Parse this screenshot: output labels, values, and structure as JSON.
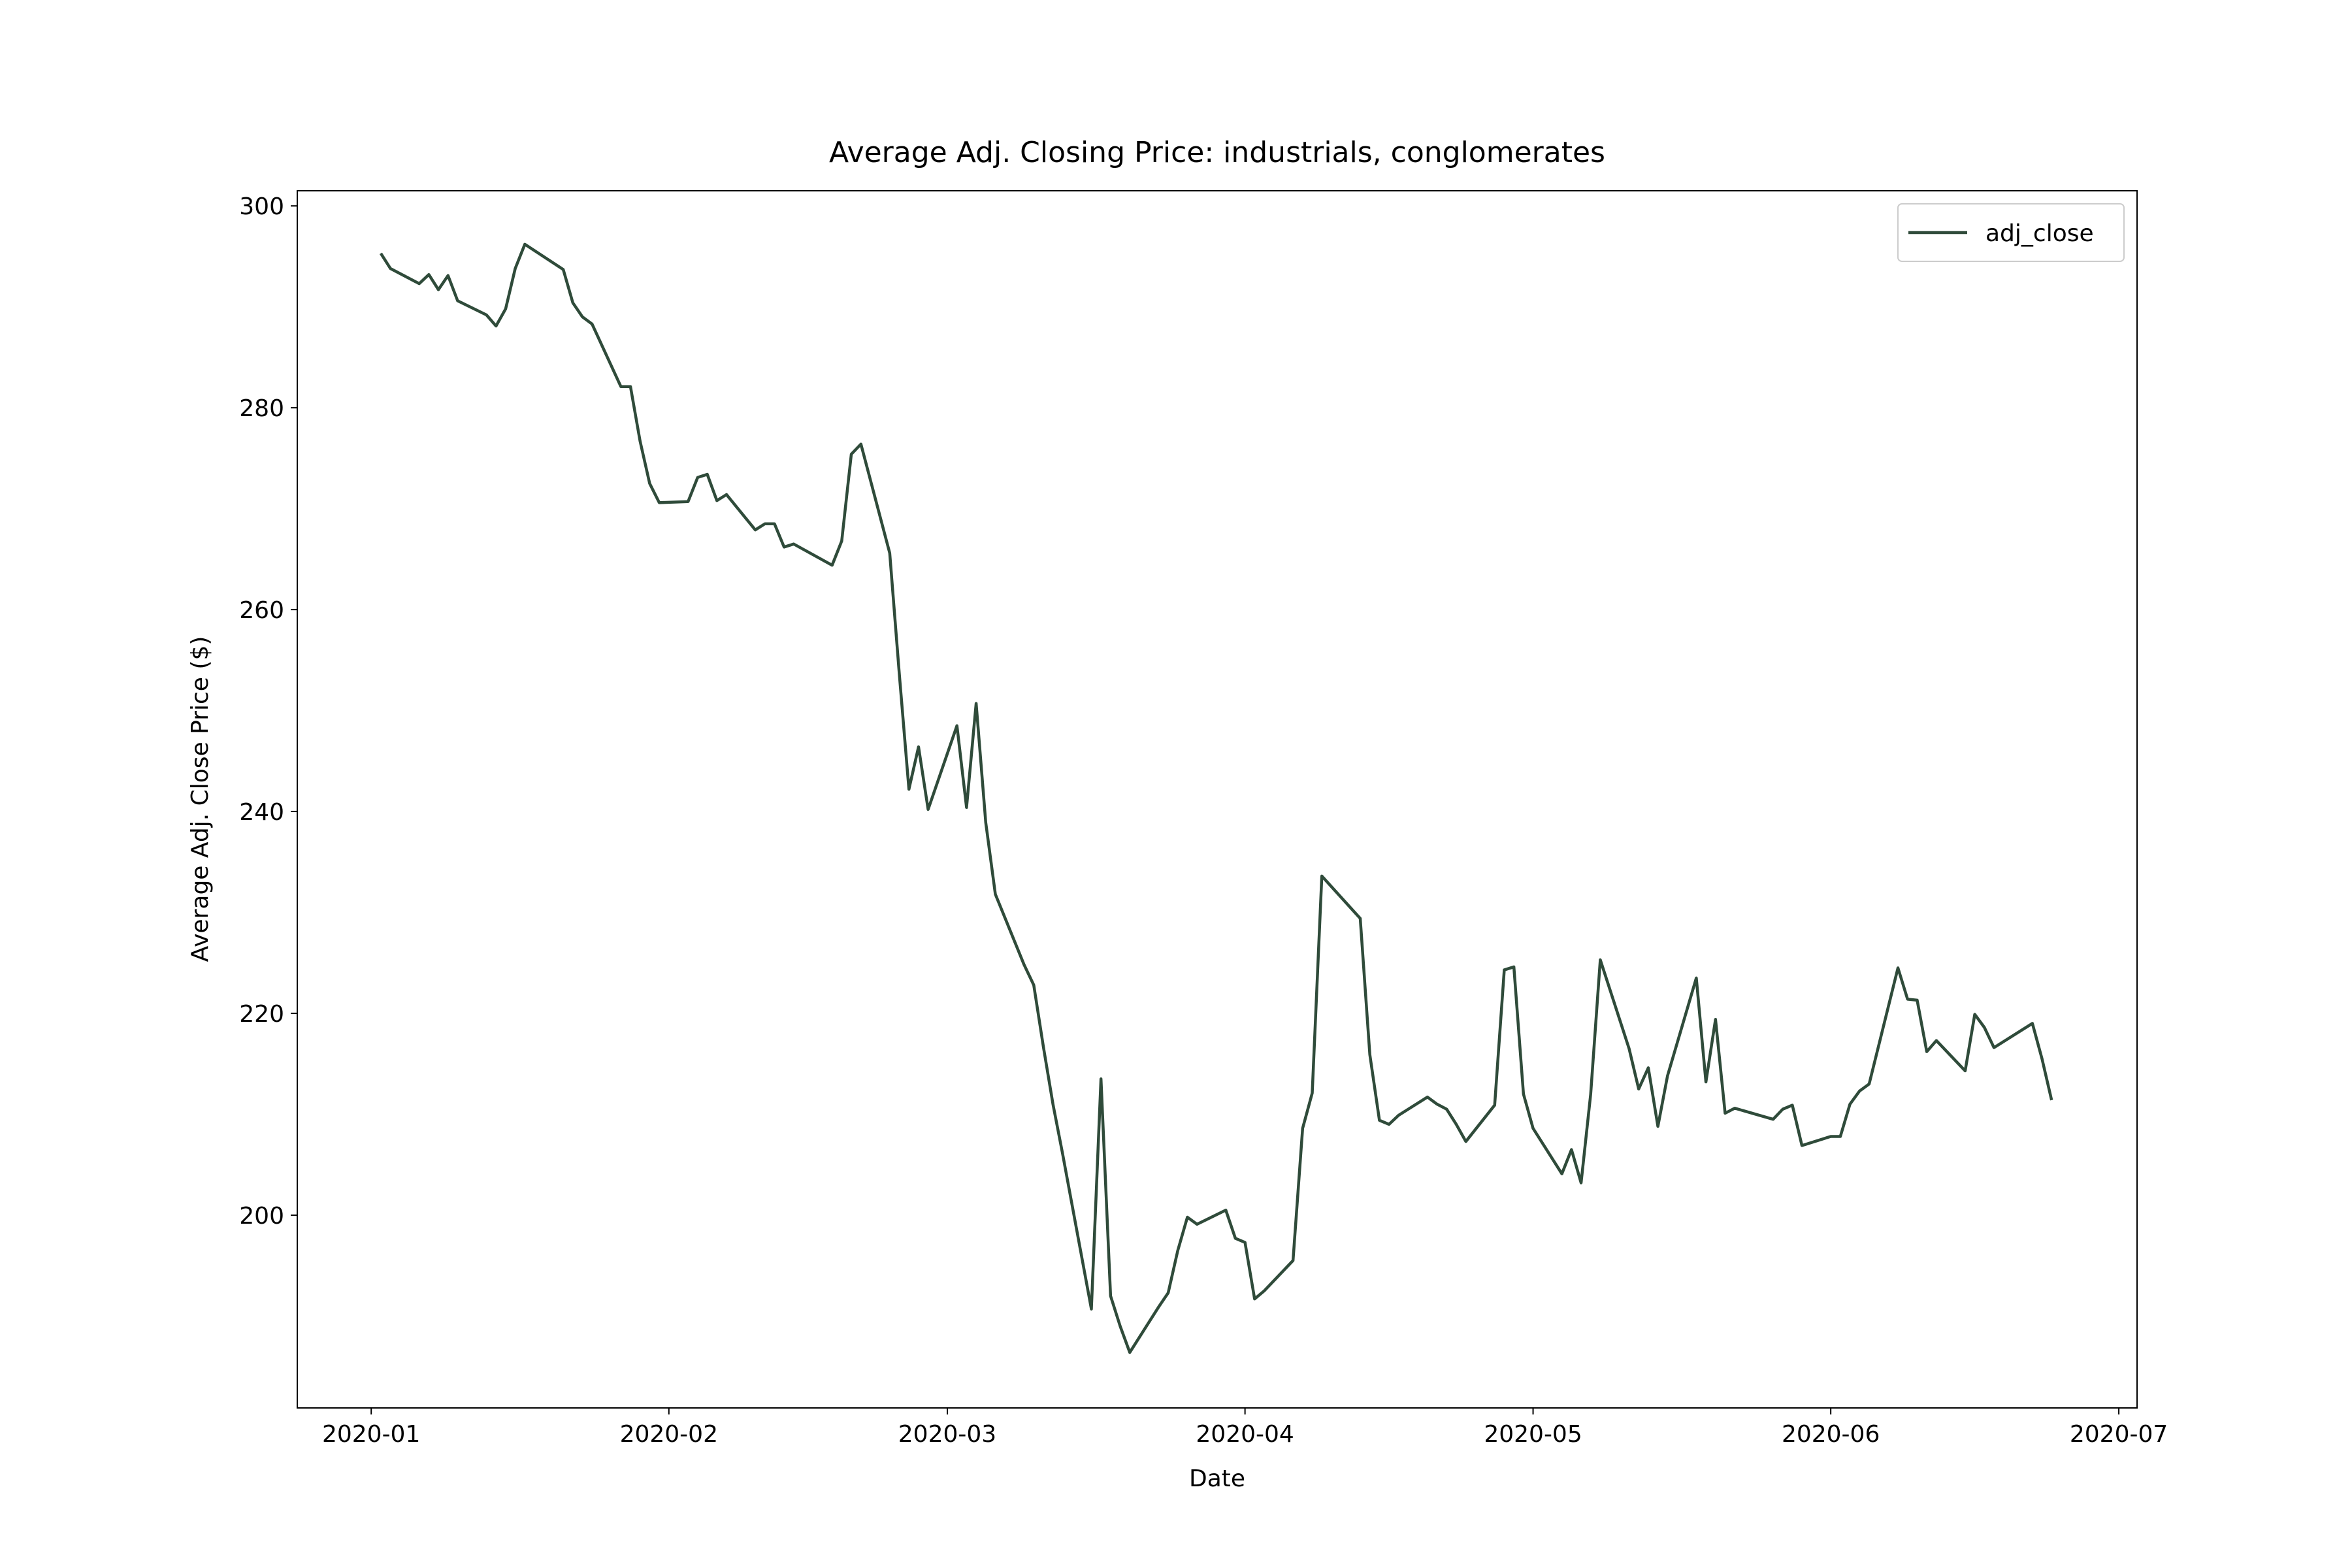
{
  "chart_data": {
    "type": "line",
    "title": "Average Adj. Closing Price: industrials, conglomerates",
    "x_label": "Date",
    "y_label": "Average Adj. Close Price ($)",
    "x": [
      18263,
      18264,
      18267,
      18268,
      18269,
      18270,
      18271,
      18274,
      18275,
      18276,
      18277,
      18278,
      18282,
      18283,
      18284,
      18285,
      18288,
      18289,
      18290,
      18291,
      18292,
      18295,
      18296,
      18297,
      18298,
      18299,
      18302,
      18303,
      18304,
      18305,
      18306,
      18310,
      18311,
      18312,
      18313,
      18316,
      18317,
      18318,
      18319,
      18320,
      18323,
      18324,
      18325,
      18326,
      18327,
      18330,
      18331,
      18332,
      18333,
      18334,
      18337,
      18338,
      18339,
      18340,
      18341,
      18344,
      18345,
      18346,
      18347,
      18348,
      18351,
      18352,
      18353,
      18354,
      18355,
      18358,
      18359,
      18360,
      18361,
      18365,
      18366,
      18367,
      18368,
      18369,
      18372,
      18373,
      18374,
      18375,
      18376,
      18379,
      18380,
      18381,
      18382,
      18383,
      18386,
      18387,
      18388,
      18389,
      18390,
      18393,
      18394,
      18395,
      18396,
      18397,
      18400,
      18401,
      18402,
      18403,
      18404,
      18408,
      18409,
      18410,
      18411,
      18414,
      18415,
      18416,
      18417,
      18418,
      18421,
      18422,
      18423,
      18424,
      18425,
      18428,
      18429,
      18430,
      18431,
      18435,
      18436,
      18437
    ],
    "series": [
      {
        "name": "adj_close",
        "color": "#2f4b3a",
        "values": [
          295.3,
          293.8,
          292.3,
          293.2,
          291.7,
          293.1,
          290.6,
          289.2,
          288.1,
          289.8,
          293.8,
          296.2,
          293.7,
          290.4,
          289.0,
          288.3,
          282.1,
          282.1,
          276.7,
          272.5,
          270.6,
          270.7,
          273.1,
          273.4,
          270.8,
          271.4,
          267.9,
          268.5,
          268.5,
          266.2,
          266.5,
          264.4,
          266.8,
          275.4,
          276.4,
          265.6,
          253.6,
          242.2,
          246.4,
          240.2,
          248.5,
          240.4,
          250.7,
          238.9,
          231.8,
          224.8,
          222.8,
          216.7,
          211.0,
          206.1,
          190.7,
          213.5,
          192.0,
          189.0,
          186.4,
          190.9,
          192.3,
          196.5,
          199.8,
          199.1,
          200.5,
          197.7,
          197.3,
          191.7,
          192.5,
          195.5,
          208.6,
          212.1,
          233.6,
          229.4,
          215.9,
          209.4,
          209.0,
          209.9,
          211.7,
          211.0,
          210.5,
          209.0,
          207.3,
          210.9,
          224.3,
          224.6,
          212.0,
          208.6,
          204.1,
          206.5,
          203.2,
          212.0,
          225.3,
          216.5,
          212.5,
          214.6,
          208.8,
          213.8,
          223.5,
          213.2,
          219.4,
          210.1,
          210.6,
          209.5,
          210.5,
          210.9,
          206.9,
          207.8,
          207.8,
          211.0,
          212.3,
          213.0,
          224.5,
          221.4,
          221.3,
          216.2,
          217.3,
          214.3,
          219.9,
          218.6,
          216.6,
          219.0,
          215.5,
          211.4
        ]
      }
    ],
    "xlim": [
      18254.3,
      18445.9
    ],
    "ylim": [
      180.9,
      301.5
    ],
    "xticks": [
      {
        "value": 18262,
        "label": "2020-01"
      },
      {
        "value": 18293,
        "label": "2020-02"
      },
      {
        "value": 18322,
        "label": "2020-03"
      },
      {
        "value": 18353,
        "label": "2020-04"
      },
      {
        "value": 18383,
        "label": "2020-05"
      },
      {
        "value": 18414,
        "label": "2020-06"
      },
      {
        "value": 18444,
        "label": "2020-07"
      }
    ],
    "yticks": [
      200,
      220,
      240,
      260,
      280,
      300
    ],
    "grid": false,
    "legend": "upper right"
  }
}
